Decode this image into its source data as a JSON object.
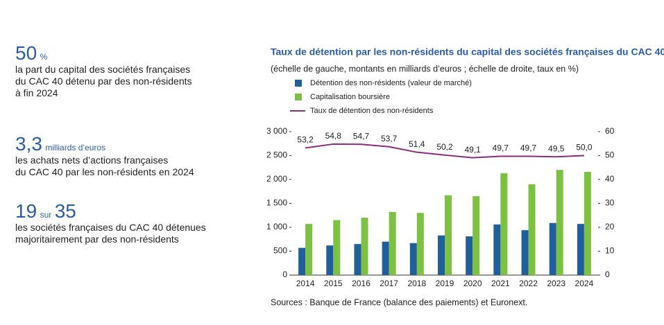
{
  "key_figures": [
    {
      "number": "50",
      "unit": "%",
      "lines": [
        "la part du capital des sociétés françaises",
        "du CAC 40 détenu par des non-résidents",
        "à fin 2024"
      ]
    },
    {
      "number": "3,3",
      "unit": "milliards d’euros",
      "lines": [
        "les achats nets d’actions françaises",
        "du CAC 40 par les non-résidents en 2024"
      ]
    },
    {
      "number": "19",
      "unit": "sur",
      "number2": "35",
      "lines": [
        "les sociétés françaises du CAC 40 détenues",
        "majoritairement par des non-résidents"
      ]
    }
  ],
  "chart_data": {
    "type": "bar",
    "title": "Taux de détention par les non-résidents du capital des sociétés françaises du CAC 40",
    "subtitle": "(échelle de gauche, montants en milliards d’euros ; échelle de droite, taux en %)",
    "categories": [
      "2014",
      "2015",
      "2016",
      "2017",
      "2018",
      "2019",
      "2020",
      "2021",
      "2022",
      "2023",
      "2024"
    ],
    "series": [
      {
        "name": "Détention des non-résidents (valeur de marché)",
        "color": "#1f5f9c",
        "values": [
          570,
          620,
          650,
          700,
          670,
          830,
          810,
          1060,
          940,
          1090,
          1070
        ]
      },
      {
        "name": "Capitalisation boursière",
        "color": "#7dc142",
        "values": [
          1070,
          1150,
          1200,
          1320,
          1300,
          1670,
          1650,
          2130,
          1900,
          2200,
          2160
        ]
      },
      {
        "name": "Taux de détention des non-résidents",
        "color": "#8c2a7c",
        "type": "line",
        "axis": "y2",
        "values": [
          53.2,
          54.8,
          54.7,
          53.7,
          51.4,
          50.2,
          49.1,
          49.7,
          49.7,
          49.5,
          50.0
        ],
        "value_labels": [
          "53,2",
          "54,8",
          "54,7",
          "53,7",
          "51,4",
          "50,2",
          "49,1",
          "49,7",
          "49,7",
          "49,5",
          "50,0"
        ]
      }
    ],
    "ylim": [
      0,
      3000
    ],
    "yticks": [
      0,
      500,
      {
        "value": 1000,
        "label": "1 000"
      },
      {
        "value": 1500,
        "label": "1 500"
      },
      {
        "value": 2000,
        "label": "2 000"
      },
      {
        "value": 2500,
        "label": "2 500"
      },
      {
        "value": 3000,
        "label": "3 000"
      }
    ],
    "y2lim": [
      0,
      60
    ],
    "y2ticks": [
      0,
      10,
      20,
      30,
      40,
      50,
      60
    ],
    "source": "Sources : Banque de France (balance des paiements) et Euronext."
  }
}
